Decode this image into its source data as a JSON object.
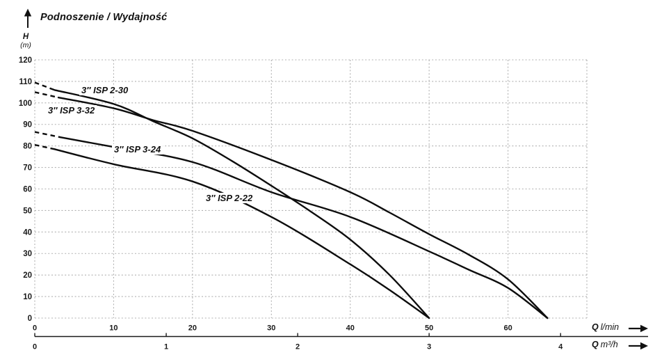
{
  "header": {
    "title": "Podnoszenie / Wydajność"
  },
  "axis_labels": {
    "h_symbol": "H",
    "h_unit": "(m)",
    "q_symbol": "Q",
    "q_unit_lmin": "l/min",
    "q_unit_m3h": "m³/h"
  },
  "colors": {
    "curve": "#0d0d0d",
    "grid": "#b0b0b0",
    "text": "#1a1a1a",
    "axis": "#1a1a1a"
  },
  "chart_data": {
    "type": "line",
    "title": "Podnoszenie / Wydajność",
    "ylabel": "H (m)",
    "xlabel_primary": "Q l/min",
    "xlabel_secondary": "Q m³/h",
    "ylim": [
      0,
      120
    ],
    "xlim_lmin": [
      0,
      70
    ],
    "y_ticks": [
      120,
      110,
      100,
      90,
      80,
      70,
      60,
      50,
      40,
      30,
      20,
      10,
      0
    ],
    "x_gridlines_lmin": [
      0,
      10,
      20,
      30,
      40,
      50,
      60,
      70
    ],
    "x_ticks_lmin": [
      0,
      10,
      20,
      30,
      40,
      50,
      60
    ],
    "x_ticks_m3h": [
      0,
      1,
      2,
      3,
      4
    ],
    "lmin_per_m3h": 16.6667,
    "grid": "dashed",
    "legend_position": "inline-labels",
    "series": [
      {
        "name": "3″ ISP 2-30",
        "dash_until_q": 2.5,
        "points": [
          [
            0,
            109.5
          ],
          [
            2.5,
            106
          ],
          [
            10,
            99.5
          ],
          [
            15,
            91.5
          ],
          [
            20,
            83.5
          ],
          [
            25,
            73
          ],
          [
            30,
            61.5
          ],
          [
            35,
            49.5
          ],
          [
            40,
            36.5
          ],
          [
            45,
            20
          ],
          [
            50,
            0
          ]
        ]
      },
      {
        "name": "3″ ISP 3-32",
        "dash_until_q": 3,
        "points": [
          [
            0,
            105
          ],
          [
            3,
            102.5
          ],
          [
            10,
            97.5
          ],
          [
            15,
            92
          ],
          [
            20,
            87
          ],
          [
            30,
            73.5
          ],
          [
            40,
            58.5
          ],
          [
            45,
            49
          ],
          [
            50,
            39
          ],
          [
            55,
            29.5
          ],
          [
            60,
            18
          ],
          [
            65,
            0
          ]
        ]
      },
      {
        "name": "3″ ISP 3-24",
        "dash_until_q": 3.3,
        "points": [
          [
            0,
            86.5
          ],
          [
            3.3,
            84
          ],
          [
            10,
            79.5
          ],
          [
            20,
            72.5
          ],
          [
            30,
            58.5
          ],
          [
            40,
            47
          ],
          [
            50,
            31
          ],
          [
            55,
            22.5
          ],
          [
            60,
            14
          ],
          [
            65,
            0
          ]
        ]
      },
      {
        "name": "3″ ISP 2-22",
        "dash_until_q": 2.5,
        "points": [
          [
            0,
            80.5
          ],
          [
            2.5,
            78.5
          ],
          [
            10,
            71.5
          ],
          [
            20,
            63.5
          ],
          [
            30,
            47
          ],
          [
            40,
            25
          ],
          [
            45,
            13
          ],
          [
            50,
            0
          ]
        ]
      }
    ]
  }
}
